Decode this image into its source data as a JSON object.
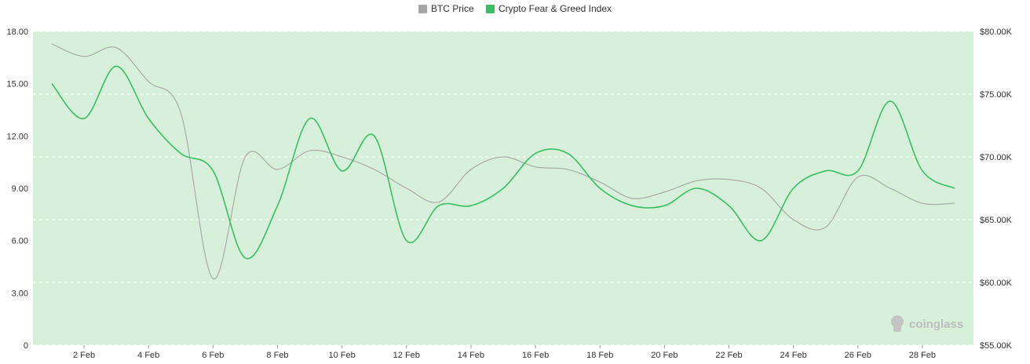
{
  "legend": {
    "items": [
      {
        "label": "BTC Price",
        "color": "#a6a6a6"
      },
      {
        "label": "Crypto Fear & Greed Index",
        "color": "#3cbf63"
      }
    ]
  },
  "watermark": {
    "text": "coinglass",
    "icon": "coinglass-logo-icon"
  },
  "colors": {
    "plot_bg": "#d6f0d9",
    "btc_line": "#a6a6a6",
    "fg_line": "#3cbf63",
    "grid": "#c2dcc5"
  },
  "chart_data": {
    "type": "line",
    "x_tick_labels": [
      "2 Feb",
      "4 Feb",
      "6 Feb",
      "8 Feb",
      "10 Feb",
      "12 Feb",
      "14 Feb",
      "16 Feb",
      "18 Feb",
      "20 Feb",
      "22 Feb",
      "24 Feb",
      "26 Feb",
      "28 Feb"
    ],
    "x_range": [
      "1 Feb",
      "29 Feb"
    ],
    "y_left": {
      "range": [
        0,
        18
      ],
      "tick_labels": [
        "0",
        "3.00",
        "6.00",
        "9.00",
        "12.00",
        "15.00",
        "18.00"
      ]
    },
    "y_right": {
      "range": [
        55000,
        80000
      ],
      "tick_labels": [
        "$55.00K",
        "$60.00K",
        "$65.00K",
        "$70.00K",
        "$75.00K",
        "$80.00K"
      ]
    },
    "grid": true,
    "legend_position": "top-center",
    "series": [
      {
        "name": "BTC Price",
        "axis": "right",
        "points": [
          [
            "1 Feb",
            79000
          ],
          [
            "2 Feb",
            78000
          ],
          [
            "3 Feb",
            78700
          ],
          [
            "4 Feb",
            76000
          ],
          [
            "5 Feb",
            73500
          ],
          [
            "6 Feb",
            60300
          ],
          [
            "7 Feb",
            70000
          ],
          [
            "8 Feb",
            69000
          ],
          [
            "9 Feb",
            70500
          ],
          [
            "10 Feb",
            70000
          ],
          [
            "11 Feb",
            69000
          ],
          [
            "12 Feb",
            67500
          ],
          [
            "13 Feb",
            66400
          ],
          [
            "14 Feb",
            69000
          ],
          [
            "15 Feb",
            70000
          ],
          [
            "16 Feb",
            69200
          ],
          [
            "17 Feb",
            69000
          ],
          [
            "18 Feb",
            68000
          ],
          [
            "19 Feb",
            66700
          ],
          [
            "20 Feb",
            67200
          ],
          [
            "21 Feb",
            68100
          ],
          [
            "22 Feb",
            68200
          ],
          [
            "23 Feb",
            67500
          ],
          [
            "24 Feb",
            65000
          ],
          [
            "25 Feb",
            64400
          ],
          [
            "26 Feb",
            68400
          ],
          [
            "27 Feb",
            67500
          ],
          [
            "28 Feb",
            66300
          ],
          [
            "29 Feb",
            66300
          ]
        ]
      },
      {
        "name": "Crypto Fear & Greed Index",
        "axis": "left",
        "points": [
          [
            "1 Feb",
            15
          ],
          [
            "2 Feb",
            13
          ],
          [
            "3 Feb",
            16
          ],
          [
            "4 Feb",
            13
          ],
          [
            "5 Feb",
            11
          ],
          [
            "6 Feb",
            10
          ],
          [
            "7 Feb",
            5
          ],
          [
            "8 Feb",
            8
          ],
          [
            "9 Feb",
            13
          ],
          [
            "10 Feb",
            10
          ],
          [
            "11 Feb",
            12
          ],
          [
            "12 Feb",
            6
          ],
          [
            "13 Feb",
            8
          ],
          [
            "14 Feb",
            8
          ],
          [
            "15 Feb",
            9
          ],
          [
            "16 Feb",
            11
          ],
          [
            "17 Feb",
            11
          ],
          [
            "18 Feb",
            9
          ],
          [
            "19 Feb",
            8
          ],
          [
            "20 Feb",
            8
          ],
          [
            "21 Feb",
            9
          ],
          [
            "22 Feb",
            8
          ],
          [
            "23 Feb",
            6
          ],
          [
            "24 Feb",
            9
          ],
          [
            "25 Feb",
            10
          ],
          [
            "26 Feb",
            10
          ],
          [
            "27 Feb",
            14
          ],
          [
            "28 Feb",
            10
          ],
          [
            "29 Feb",
            9
          ]
        ]
      }
    ]
  }
}
